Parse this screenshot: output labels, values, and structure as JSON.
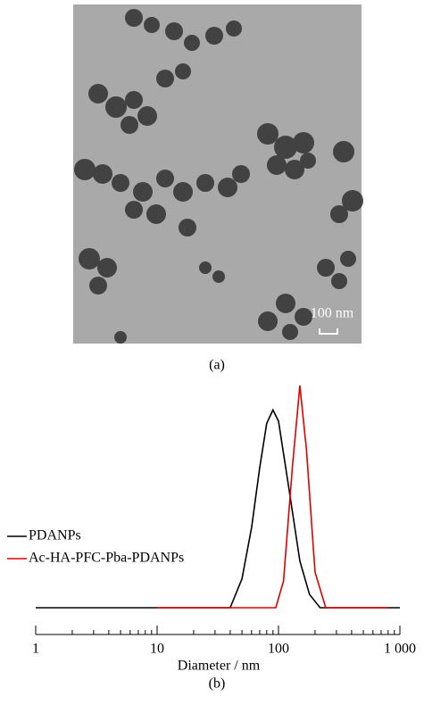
{
  "figure": {
    "scale_bar": "100 nm",
    "caption": "(a)"
  },
  "chart_data": {
    "type": "line",
    "caption": "(b)",
    "x_label": "Diameter / nm",
    "xlim": [
      1,
      1000
    ],
    "xscale": "log",
    "xticks": [
      1,
      10,
      100,
      {
        "value": 1000,
        "label": "1 000"
      }
    ],
    "xminorticks": [
      2,
      3,
      4,
      5,
      6,
      7,
      8,
      9,
      20,
      30,
      40,
      50,
      60,
      70,
      80,
      90,
      200,
      300,
      400,
      500,
      600,
      700,
      800,
      900
    ],
    "ylim": [
      0,
      1
    ],
    "legend": "left",
    "series": [
      {
        "name": "PDANPs",
        "color": "#000000",
        "x": [
          1,
          40,
          50,
          60,
          70,
          80,
          90,
          100,
          120,
          150,
          180,
          220,
          1000
        ],
        "values": [
          0,
          0,
          0.13,
          0.36,
          0.63,
          0.83,
          0.89,
          0.84,
          0.56,
          0.21,
          0.06,
          0,
          0
        ]
      },
      {
        "name": "Ac-HA-PFC-Pba-PDANPs",
        "color": "#e00000",
        "x": [
          10,
          95,
          110,
          130,
          150,
          170,
          200,
          245,
          800
        ],
        "values": [
          0,
          0,
          0.12,
          0.63,
          1,
          0.71,
          0.16,
          0,
          0
        ]
      }
    ]
  }
}
